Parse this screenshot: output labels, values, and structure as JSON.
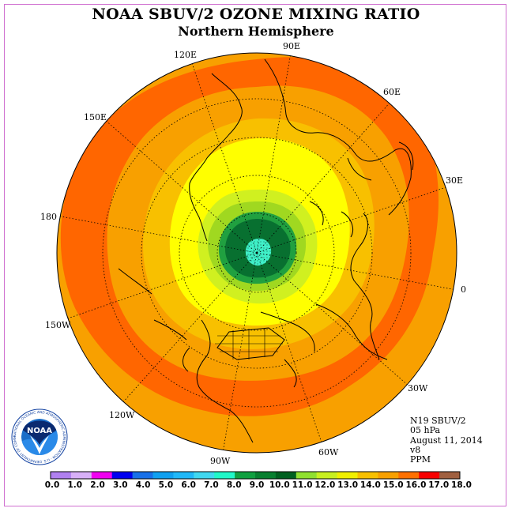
{
  "header": {
    "title": "NOAA SBUV/2 OZONE MIXING RATIO",
    "subtitle": "Northern Hemisphere"
  },
  "map": {
    "projection": "north-polar-stereographic",
    "fill_colors": {
      "outer": "#F8A000",
      "band_16": "#FF6600",
      "band_14": "#F8A000",
      "band_13": "#F8C000",
      "band_12": "#FFFF00",
      "band_11": "#D0F020",
      "band_10": "#A0D820",
      "band_9": "#20A040",
      "band_8": "#087030",
      "core": "#40F0C8"
    },
    "longitude_labels": [
      "90E",
      "60E",
      "30E",
      "0",
      "30W",
      "60W",
      "90W",
      "120W",
      "150W",
      "180",
      "150E",
      "120E"
    ]
  },
  "info": {
    "lines": [
      "N19 SBUV/2",
      "05 hPa",
      "August 11, 2014",
      "v8",
      "PPM"
    ]
  },
  "logo": {
    "text": "NOAA",
    "ring_text": "NATIONAL OCEANIC AND ATMOSPHERIC ADMINISTRATION · U.S. DEPARTMENT OF COMMERCE"
  },
  "colorbar": {
    "unit": "PPM",
    "ticks": [
      "0.0",
      "1.0",
      "2.0",
      "3.0",
      "4.0",
      "5.0",
      "6.0",
      "7.0",
      "8.0",
      "9.0",
      "10.0",
      "11.0",
      "12.0",
      "13.0",
      "14.0",
      "15.0",
      "16.0",
      "17.0",
      "18.0"
    ],
    "colors": [
      "#B080F0",
      "#D8B0F8",
      "#F000F0",
      "#0000F0",
      "#1870E8",
      "#10A0F0",
      "#20B8F8",
      "#40D8F0",
      "#20F8C8",
      "#10A040",
      "#088030",
      "#006020",
      "#90E030",
      "#C8F020",
      "#F0F000",
      "#F8C000",
      "#F8A000",
      "#FF7000",
      "#F80000",
      "#A06040"
    ]
  }
}
